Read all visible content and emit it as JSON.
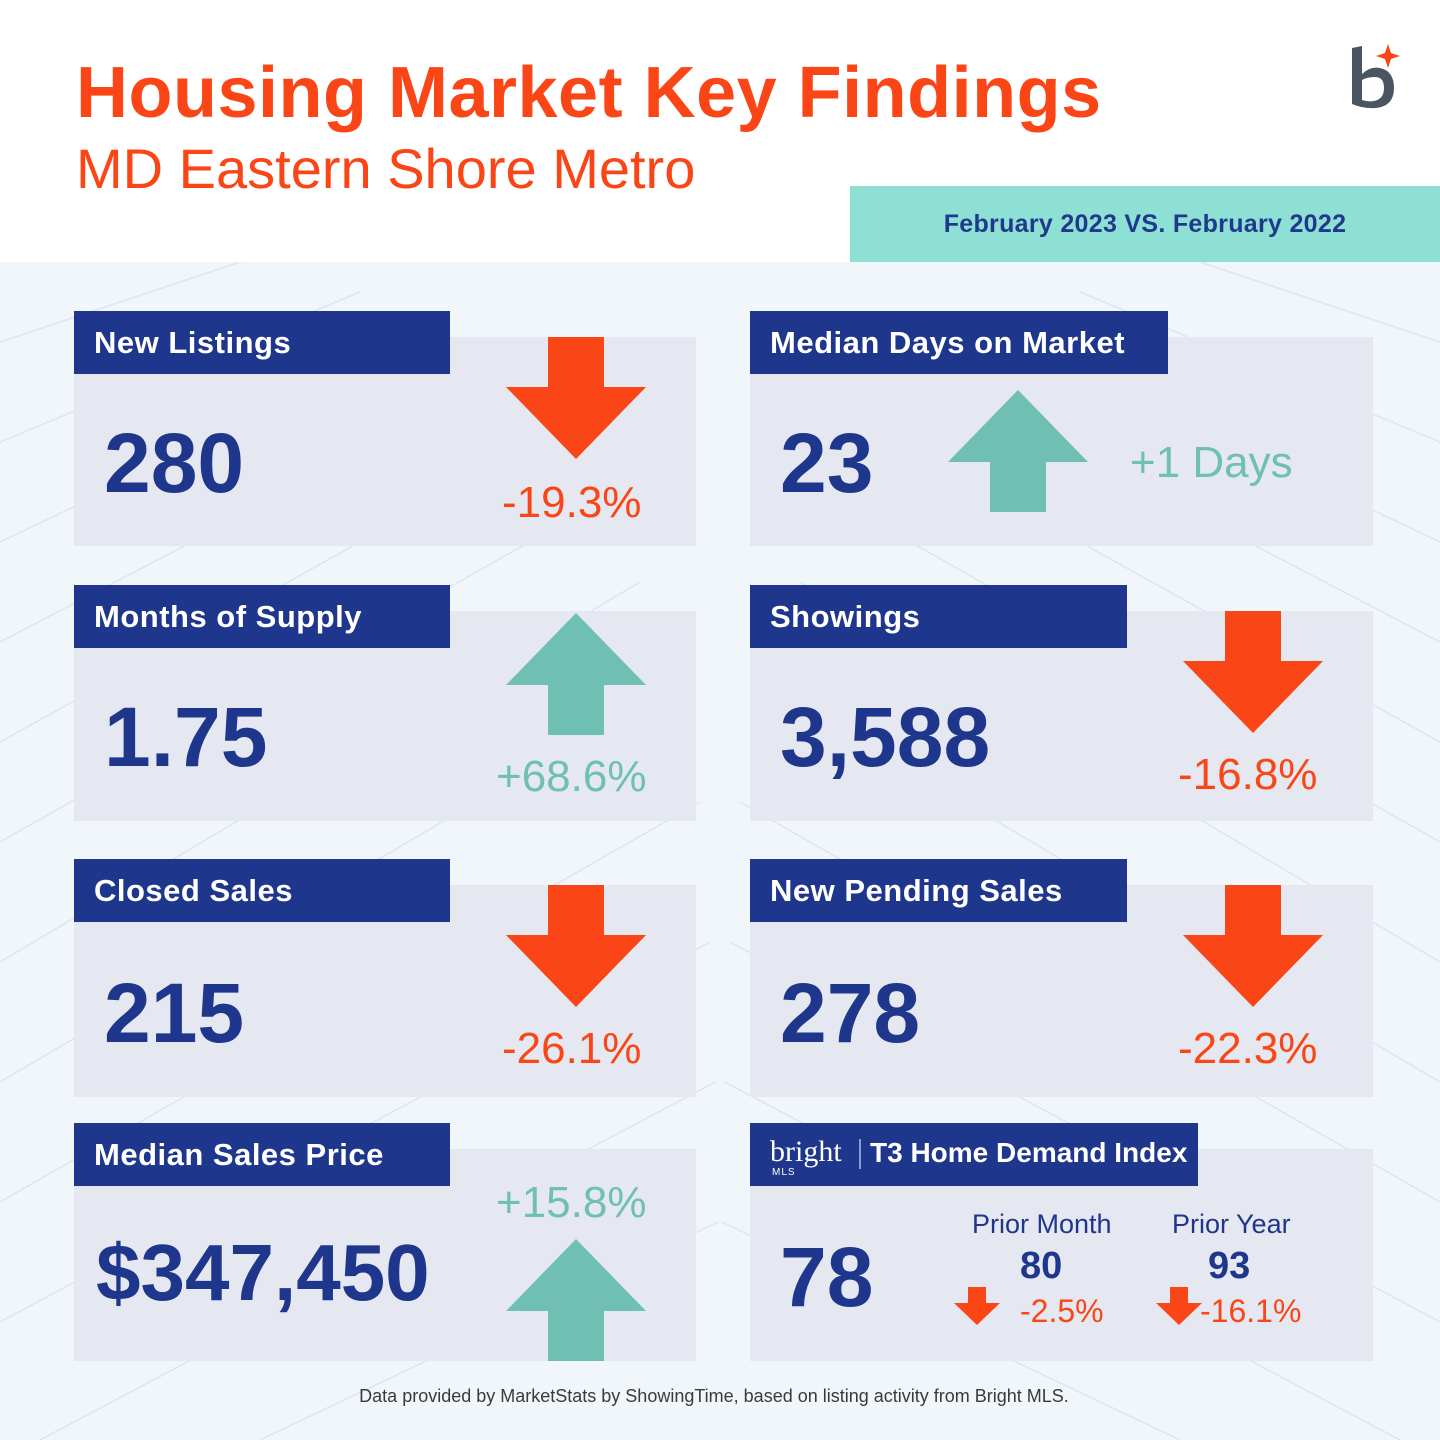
{
  "header": {
    "title": "Housing Market Key Findings",
    "subtitle": "MD Eastern Shore Metro",
    "logo_icon": "bright-b-logo-icon",
    "comparison": "February 2023 VS. February 2022"
  },
  "colors": {
    "orange": "#fa4616",
    "navy": "#1e368c",
    "teal": "#6fbfb3",
    "band": "#8ee0d4",
    "card_bg": "#e5e8f1"
  },
  "metrics": {
    "new_listings": {
      "label": "New Listings",
      "value": "280",
      "change": "-19.3%",
      "direction": "down"
    },
    "median_dom": {
      "label": "Median Days on Market",
      "value": "23",
      "change": "+1 Days",
      "direction": "up"
    },
    "months_supply": {
      "label": "Months of Supply",
      "value": "1.75",
      "change": "+68.6%",
      "direction": "up"
    },
    "showings": {
      "label": "Showings",
      "value": "3,588",
      "change": "-16.8%",
      "direction": "down"
    },
    "closed_sales": {
      "label": "Closed Sales",
      "value": "215",
      "change": "-26.1%",
      "direction": "down"
    },
    "pending_sales": {
      "label": "New Pending Sales",
      "value": "278",
      "change": "-22.3%",
      "direction": "down"
    },
    "median_price": {
      "label": "Median Sales Price",
      "value": "$347,450",
      "change": "+15.8%",
      "direction": "up"
    }
  },
  "t3": {
    "brand": "bright",
    "brand_sub": "MLS",
    "title": "T3 Home Demand Index",
    "value": "78",
    "prior_month_label": "Prior Month",
    "prior_month_value": "80",
    "prior_month_change": "-2.5%",
    "prior_year_label": "Prior Year",
    "prior_year_value": "93",
    "prior_year_change": "-16.1%"
  },
  "footnote": "Data provided by MarketStats by ShowingTime, based on listing activity from Bright MLS."
}
